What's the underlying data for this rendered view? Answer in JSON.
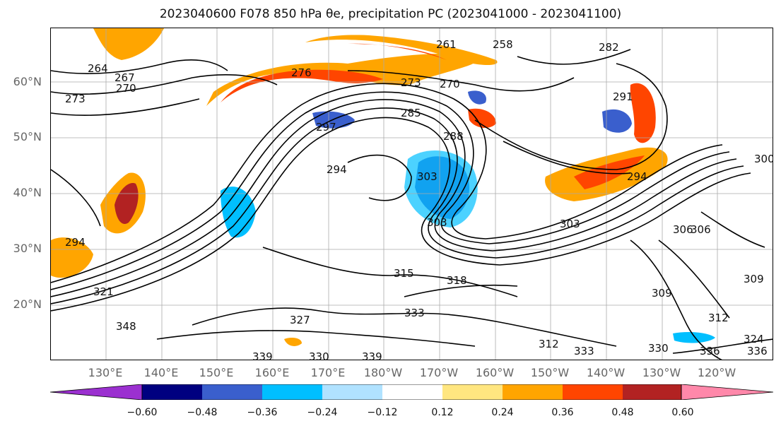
{
  "title": "2023040600 F078 850 hPa θe, precipitation PC (2023041000 - 2023041100)",
  "map": {
    "lat_labels": [
      "60°N",
      "50°N",
      "40°N",
      "30°N",
      "20°N"
    ],
    "lon_labels": [
      "130°E",
      "140°E",
      "150°E",
      "160°E",
      "170°E",
      "180°W",
      "170°W",
      "160°W",
      "150°W",
      "140°W",
      "130°W",
      "120°W"
    ],
    "contour_labels": [
      "264",
      "267",
      "270",
      "273",
      "276",
      "273",
      "270",
      "258",
      "261",
      "282",
      "291",
      "297",
      "294",
      "285",
      "288",
      "303",
      "294",
      "303",
      "306",
      "309",
      "312",
      "315",
      "318",
      "321",
      "324",
      "327",
      "330",
      "333",
      "336",
      "339",
      "348",
      "330",
      "336",
      "339",
      "333",
      "312",
      "294",
      "300",
      "306",
      "309",
      "303"
    ],
    "land_color": "#ffffff",
    "gridlines": true
  },
  "colorbar": {
    "ticks": [
      "−0.60",
      "−0.48",
      "−0.36",
      "−0.24",
      "−0.12",
      "0.12",
      "0.24",
      "0.36",
      "0.48",
      "0.60"
    ],
    "colors": [
      "#9b30d0",
      "#000080",
      "#3a5fcd",
      "#00bfff",
      "#b0e2ff",
      "#ffffff",
      "#ffe680",
      "#ffa500",
      "#ff4500",
      "#b22222",
      "#ff88aa"
    ],
    "extend": "both"
  }
}
